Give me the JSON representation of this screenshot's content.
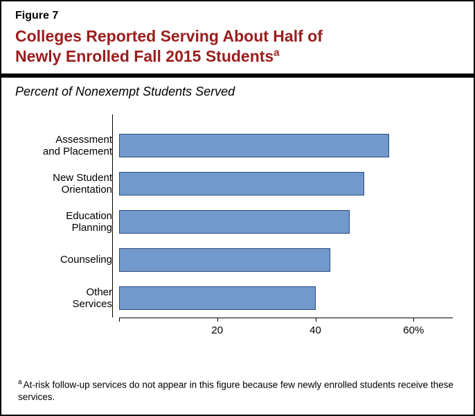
{
  "header": {
    "figure_label": "Figure 7",
    "title_line1": "Colleges Reported Serving About Half of",
    "title_line2": "Newly Enrolled Fall 2015 Students",
    "title_sup": "a",
    "title_color": "#9a1d1d"
  },
  "subtitle": "Percent of Nonexempt Students Served",
  "chart": {
    "type": "bar-horizontal",
    "xmin": 0,
    "xmax": 68,
    "bar_color": "#7199cc",
    "bar_border_color": "#2a4a7a",
    "axis_color": "#000000",
    "background_color": "#ffffff",
    "categories": [
      {
        "label_line1": "Assessment",
        "label_line2": "and Placement",
        "value": 55
      },
      {
        "label_line1": "New Student",
        "label_line2": "Orientation",
        "value": 50
      },
      {
        "label_line1": "Education",
        "label_line2": "Planning",
        "value": 47
      },
      {
        "label_line1": "Counseling",
        "label_line2": "",
        "value": 43
      },
      {
        "label_line1": "Other",
        "label_line2": "Services",
        "value": 40
      }
    ],
    "ticks": [
      {
        "value": 20,
        "label": "20"
      },
      {
        "value": 40,
        "label": "40"
      },
      {
        "value": 60,
        "label": "60%"
      }
    ],
    "label_fontsize": 15,
    "tick_fontsize": 15
  },
  "footnote": {
    "sup": "a",
    "text": "At-risk follow-up services do not appear in this figure because few newly enrolled students receive these services."
  }
}
